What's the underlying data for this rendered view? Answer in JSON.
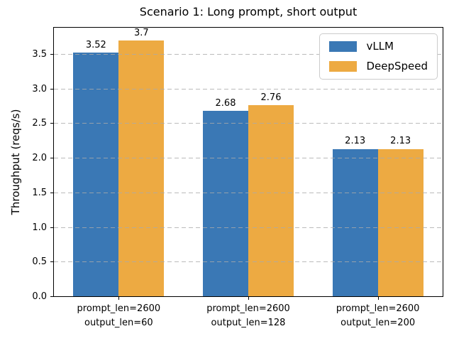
{
  "chart_data": {
    "type": "bar",
    "title": "Scenario 1: Long prompt, short output",
    "xlabel": "",
    "ylabel": "Throughput (reqs/s)",
    "categories": [
      "prompt_len=2600\noutput_len=60",
      "prompt_len=2600\noutput_len=128",
      "prompt_len=2600\noutput_len=200"
    ],
    "series": [
      {
        "name": "vLLM",
        "color": "#3a78b5",
        "values": [
          3.52,
          2.68,
          2.13
        ]
      },
      {
        "name": "DeepSpeed",
        "color": "#edaa42",
        "values": [
          3.7,
          2.76,
          2.13
        ]
      }
    ],
    "bar_value_labels": [
      "3.52",
      "3.7",
      "2.68",
      "2.76",
      "2.13",
      "2.13"
    ],
    "yticks": [
      0.0,
      0.5,
      1.0,
      1.5,
      2.0,
      2.5,
      3.0,
      3.5
    ],
    "ylim": [
      0,
      3.88
    ],
    "grid": "horizontal dashed, drawn over bars",
    "legend_position": "upper right",
    "colors": {
      "grid": "#aaaaaa",
      "spine": "#000000",
      "background": "#ffffff"
    }
  }
}
